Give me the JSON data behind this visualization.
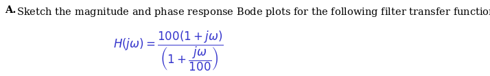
{
  "background_color": "#ffffff",
  "text_color": "#3333cc",
  "header_color": "#000000",
  "header_text": "\\textbf{A.} Sketch the magnitude and phase response Bode plots for the following filter transfer function, $H(j\\omega)$:",
  "header_plain": "A. Sketch the magnitude and phase response Bode plots for the following filter transfer function, $H(j\\omega)$:",
  "formula": "$H(j\\omega) = \\dfrac{100(1 + j\\omega)}{\\left(1 + \\dfrac{j\\omega}{100}\\right)}$",
  "header_fontsize": 10.5,
  "formula_fontsize": 12,
  "fig_width": 7.14,
  "fig_height": 1.13,
  "dpi": 100
}
